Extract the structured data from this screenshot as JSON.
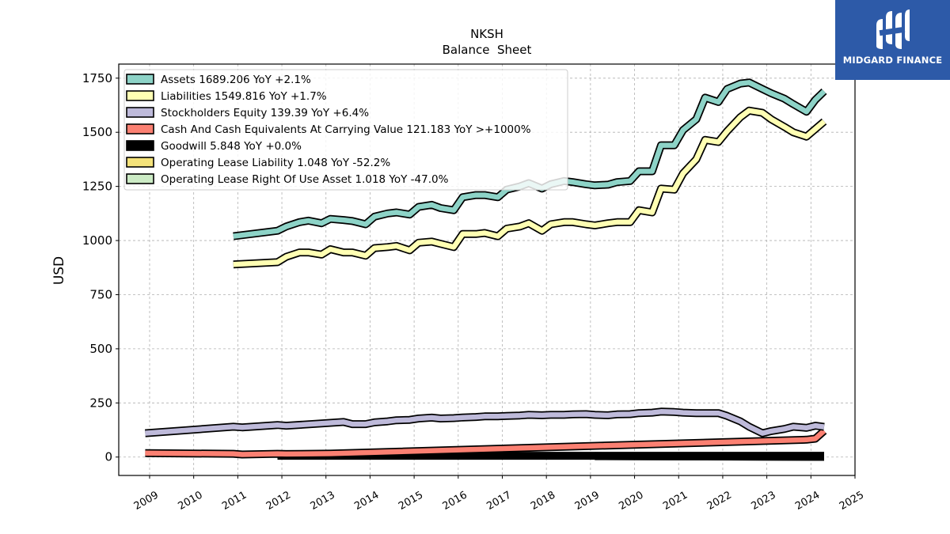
{
  "logo": {
    "text": "MIDGARD FINANCE"
  },
  "chart_data": {
    "type": "line",
    "title": "NKSH",
    "subtitle": "Balance  Sheet",
    "ylabel": "USD",
    "xlabel": "",
    "xlim": [
      2008.3,
      2025.0
    ],
    "ylim": [
      -85,
      1815
    ],
    "yticks": [
      0,
      250,
      500,
      750,
      1000,
      1250,
      1500,
      1750
    ],
    "xticks": [
      2009,
      2010,
      2011,
      2012,
      2013,
      2014,
      2015,
      2016,
      2017,
      2018,
      2019,
      2020,
      2021,
      2022,
      2023,
      2024,
      2025
    ],
    "grid": true,
    "legend_position": "top-left",
    "series": [
      {
        "name": "Assets",
        "legend": "Assets  1689.206 YoY +2.1%",
        "color": "#8dd3c7",
        "points": [
          [
            2010.9,
            1020
          ],
          [
            2011.9,
            1045
          ],
          [
            2012.1,
            1065
          ],
          [
            2012.4,
            1085
          ],
          [
            2012.6,
            1092
          ],
          [
            2012.9,
            1080
          ],
          [
            2013.1,
            1100
          ],
          [
            2013.4,
            1095
          ],
          [
            2013.6,
            1090
          ],
          [
            2013.9,
            1075
          ],
          [
            2014.1,
            1110
          ],
          [
            2014.4,
            1125
          ],
          [
            2014.6,
            1130
          ],
          [
            2014.9,
            1120
          ],
          [
            2015.1,
            1155
          ],
          [
            2015.4,
            1165
          ],
          [
            2015.6,
            1150
          ],
          [
            2015.9,
            1140
          ],
          [
            2016.1,
            1200
          ],
          [
            2016.4,
            1210
          ],
          [
            2016.6,
            1210
          ],
          [
            2016.9,
            1200
          ],
          [
            2017.1,
            1235
          ],
          [
            2017.4,
            1250
          ],
          [
            2017.6,
            1265
          ],
          [
            2017.9,
            1240
          ],
          [
            2018.1,
            1260
          ],
          [
            2018.4,
            1275
          ],
          [
            2018.6,
            1270
          ],
          [
            2018.9,
            1260
          ],
          [
            2019.1,
            1255
          ],
          [
            2019.4,
            1258
          ],
          [
            2019.6,
            1270
          ],
          [
            2019.9,
            1275
          ],
          [
            2020.1,
            1320
          ],
          [
            2020.4,
            1320
          ],
          [
            2020.6,
            1440
          ],
          [
            2020.9,
            1440
          ],
          [
            2021.1,
            1510
          ],
          [
            2021.4,
            1560
          ],
          [
            2021.6,
            1660
          ],
          [
            2021.9,
            1640
          ],
          [
            2022.1,
            1700
          ],
          [
            2022.4,
            1725
          ],
          [
            2022.6,
            1730
          ],
          [
            2022.9,
            1700
          ],
          [
            2023.1,
            1680
          ],
          [
            2023.4,
            1655
          ],
          [
            2023.6,
            1630
          ],
          [
            2023.9,
            1595
          ],
          [
            2024.1,
            1650
          ],
          [
            2024.3,
            1689.206
          ]
        ]
      },
      {
        "name": "Liabilities",
        "legend": "Liabilities  1549.816 YoY +1.7%",
        "color": "#ffffb3",
        "points": [
          [
            2010.9,
            890
          ],
          [
            2011.9,
            900
          ],
          [
            2012.1,
            925
          ],
          [
            2012.4,
            945
          ],
          [
            2012.6,
            945
          ],
          [
            2012.9,
            935
          ],
          [
            2013.1,
            960
          ],
          [
            2013.4,
            945
          ],
          [
            2013.6,
            945
          ],
          [
            2013.9,
            930
          ],
          [
            2014.1,
            965
          ],
          [
            2014.4,
            970
          ],
          [
            2014.6,
            975
          ],
          [
            2014.9,
            955
          ],
          [
            2015.1,
            990
          ],
          [
            2015.4,
            995
          ],
          [
            2015.6,
            985
          ],
          [
            2015.9,
            970
          ],
          [
            2016.1,
            1030
          ],
          [
            2016.4,
            1030
          ],
          [
            2016.6,
            1035
          ],
          [
            2016.9,
            1020
          ],
          [
            2017.1,
            1055
          ],
          [
            2017.4,
            1065
          ],
          [
            2017.6,
            1080
          ],
          [
            2017.9,
            1045
          ],
          [
            2018.1,
            1075
          ],
          [
            2018.4,
            1085
          ],
          [
            2018.6,
            1085
          ],
          [
            2018.9,
            1075
          ],
          [
            2019.1,
            1070
          ],
          [
            2019.4,
            1080
          ],
          [
            2019.6,
            1085
          ],
          [
            2019.9,
            1085
          ],
          [
            2020.1,
            1140
          ],
          [
            2020.4,
            1130
          ],
          [
            2020.6,
            1240
          ],
          [
            2020.9,
            1235
          ],
          [
            2021.1,
            1310
          ],
          [
            2021.4,
            1375
          ],
          [
            2021.6,
            1465
          ],
          [
            2021.9,
            1455
          ],
          [
            2022.1,
            1505
          ],
          [
            2022.4,
            1570
          ],
          [
            2022.6,
            1600
          ],
          [
            2022.9,
            1590
          ],
          [
            2023.1,
            1560
          ],
          [
            2023.4,
            1525
          ],
          [
            2023.6,
            1500
          ],
          [
            2023.9,
            1480
          ],
          [
            2024.1,
            1515
          ],
          [
            2024.3,
            1549.816
          ]
        ]
      },
      {
        "name": "Stockholders Equity",
        "legend": "Stockholders Equity  139.39 YoY +6.4%",
        "color": "#bebada",
        "points": [
          [
            2008.9,
            110
          ],
          [
            2010.9,
            140
          ],
          [
            2011.1,
            137
          ],
          [
            2011.9,
            148
          ],
          [
            2012.1,
            145
          ],
          [
            2012.9,
            155
          ],
          [
            2013.1,
            158
          ],
          [
            2013.4,
            162
          ],
          [
            2013.6,
            152
          ],
          [
            2013.9,
            152
          ],
          [
            2014.1,
            160
          ],
          [
            2014.4,
            165
          ],
          [
            2014.6,
            170
          ],
          [
            2014.9,
            172
          ],
          [
            2015.1,
            178
          ],
          [
            2015.4,
            182
          ],
          [
            2015.6,
            178
          ],
          [
            2015.9,
            180
          ],
          [
            2016.1,
            183
          ],
          [
            2016.4,
            185
          ],
          [
            2016.6,
            188
          ],
          [
            2016.9,
            188
          ],
          [
            2017.1,
            190
          ],
          [
            2017.4,
            192
          ],
          [
            2017.6,
            195
          ],
          [
            2017.9,
            193
          ],
          [
            2018.1,
            195
          ],
          [
            2018.4,
            195
          ],
          [
            2018.6,
            197
          ],
          [
            2018.9,
            198
          ],
          [
            2019.1,
            195
          ],
          [
            2019.4,
            193
          ],
          [
            2019.6,
            197
          ],
          [
            2019.9,
            198
          ],
          [
            2020.1,
            203
          ],
          [
            2020.4,
            205
          ],
          [
            2020.6,
            210
          ],
          [
            2020.9,
            208
          ],
          [
            2021.1,
            205
          ],
          [
            2021.4,
            203
          ],
          [
            2021.6,
            203
          ],
          [
            2021.9,
            203
          ],
          [
            2022.1,
            190
          ],
          [
            2022.4,
            165
          ],
          [
            2022.6,
            140
          ],
          [
            2022.9,
            110
          ],
          [
            2023.1,
            120
          ],
          [
            2023.4,
            130
          ],
          [
            2023.6,
            140
          ],
          [
            2023.9,
            135
          ],
          [
            2024.1,
            145
          ],
          [
            2024.3,
            139.39
          ]
        ]
      },
      {
        "name": "Cash And Cash Equivalents At Carrying Value",
        "legend": "Cash And Cash Equivalents At Carrying Value  121.183 YoY >+1000%",
        "color": "#fb8072",
        "points": [
          [
            2008.9,
            18
          ],
          [
            2010.9,
            15
          ],
          [
            2011.1,
            12
          ],
          [
            2011.9,
            15
          ],
          [
            2012.1,
            14
          ],
          [
            2013.1,
            16
          ],
          [
            2023.9,
            80
          ],
          [
            2024.1,
            85
          ],
          [
            2024.3,
            121.183
          ]
        ]
      },
      {
        "name": "Goodwill",
        "legend": "Goodwill  5.848 YoY +0.0%",
        "color": "#000000",
        "points": [
          [
            2011.9,
            5.848
          ],
          [
            2024.3,
            5.848
          ]
        ]
      },
      {
        "name": "Operating Lease Liability",
        "legend": "Operating Lease Liability  1.048 YoY -52.2%",
        "color": "#f4e27a",
        "points": [
          [
            2019.1,
            5
          ],
          [
            2024.3,
            1.048
          ]
        ]
      },
      {
        "name": "Operating Lease Right Of Use Asset",
        "legend": "Operating Lease Right Of Use Asset  1.018 YoY -47.0%",
        "color": "#ccebc5",
        "points": [
          [
            2019.1,
            4
          ],
          [
            2024.3,
            1.018
          ]
        ]
      }
    ]
  }
}
